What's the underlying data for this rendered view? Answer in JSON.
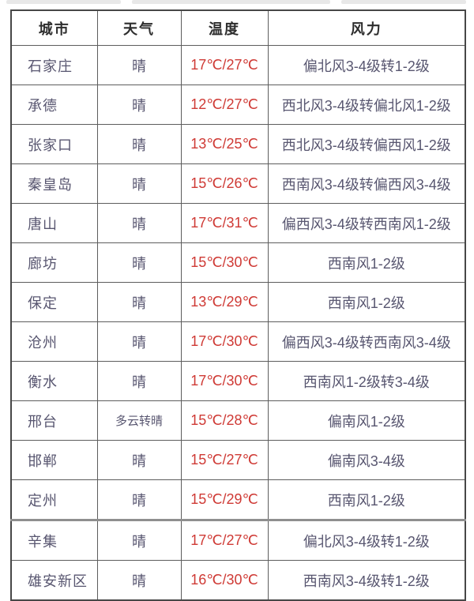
{
  "colors": {
    "temperature_text": "#cf3a35",
    "body_text": "#585670",
    "header_text": "#2d2d2d",
    "border": "#5d5d5d"
  },
  "weather_table": {
    "headers": {
      "city": "城市",
      "weather": "天气",
      "temperature": "温度",
      "wind": "风力"
    },
    "rows": [
      {
        "city": "石家庄",
        "weather": "晴",
        "temperature": "17℃/27℃",
        "wind": "偏北风3-4级转1-2级"
      },
      {
        "city": "承德",
        "weather": "晴",
        "temperature": "12℃/27℃",
        "wind": "西北风3-4级转偏北风1-2级"
      },
      {
        "city": "张家口",
        "weather": "晴",
        "temperature": "13℃/25℃",
        "wind": "西北风3-4级转偏西风1-2级"
      },
      {
        "city": "秦皇岛",
        "weather": "晴",
        "temperature": "15℃/26℃",
        "wind": "西南风3-4级转偏西风3-4级"
      },
      {
        "city": "唐山",
        "weather": "晴",
        "temperature": "17℃/31℃",
        "wind": "偏西风3-4级转西南风1-2级"
      },
      {
        "city": "廊坊",
        "weather": "晴",
        "temperature": "15℃/30℃",
        "wind": "西南风1-2级"
      },
      {
        "city": "保定",
        "weather": "晴",
        "temperature": "13℃/29℃",
        "wind": "西南风1-2级"
      },
      {
        "city": "沧州",
        "weather": "晴",
        "temperature": "17℃/30℃",
        "wind": "偏西风3-4级转西南风3-4级"
      },
      {
        "city": "衡水",
        "weather": "晴",
        "temperature": "17℃/30℃",
        "wind": "西南风1-2级转3-4级"
      },
      {
        "city": "邢台",
        "weather": "多云转晴",
        "temperature": "15℃/28℃",
        "wind": "偏南风1-2级"
      },
      {
        "city": "邯郸",
        "weather": "晴",
        "temperature": "15℃/27℃",
        "wind": "偏南风3-4级"
      },
      {
        "city": "定州",
        "weather": "晴",
        "temperature": "15℃/29℃",
        "wind": "西南风1-2级"
      },
      {
        "city": "辛集",
        "weather": "晴",
        "temperature": "17℃/27℃",
        "wind": "偏北风3-4级转1-2级"
      },
      {
        "city": "雄安新区",
        "weather": "晴",
        "temperature": "16℃/30℃",
        "wind": "西南风3-4级转1-2级"
      }
    ]
  }
}
